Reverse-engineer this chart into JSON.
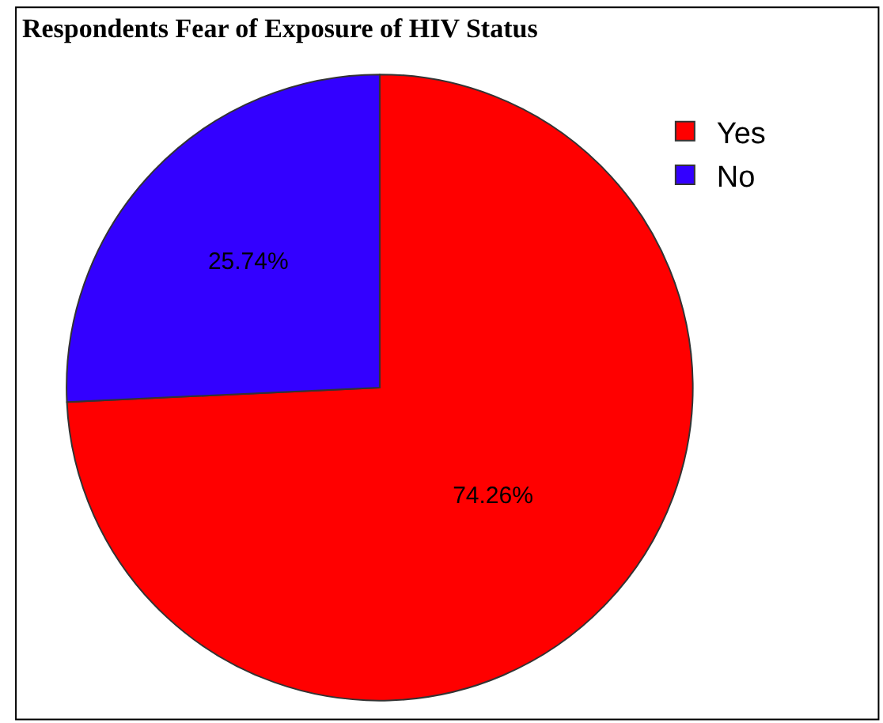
{
  "chart_data": {
    "type": "pie",
    "title": "Respondents Fear of Exposure of HIV Status",
    "categories": [
      "Yes",
      "No"
    ],
    "values": [
      74.26,
      25.74
    ],
    "value_labels": [
      "74.26%",
      "25.74%"
    ],
    "colors": [
      "#ff0000",
      "#3300ff"
    ],
    "legend": "top right"
  }
}
